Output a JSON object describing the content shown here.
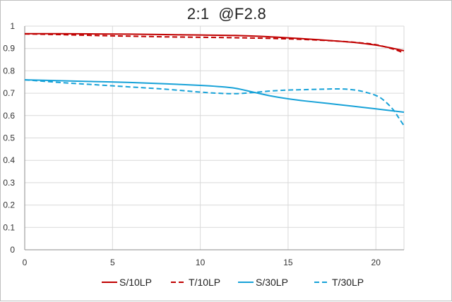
{
  "chart_data": {
    "type": "line",
    "title": "2:1  @F2.8",
    "xlabel": "",
    "ylabel": "",
    "xlim": [
      0,
      21.6
    ],
    "ylim": [
      0,
      1
    ],
    "xticks": [
      0,
      5,
      10,
      15,
      20
    ],
    "yticks": [
      0,
      0.1,
      0.2,
      0.3,
      0.4,
      0.5,
      0.6,
      0.7,
      0.8,
      0.9,
      1
    ],
    "ytick_labels": [
      "0",
      "0.1",
      "0.2",
      "0.3",
      "0.4",
      "0.5",
      "0.6",
      "0.7",
      "0.8",
      "0.9",
      "1"
    ],
    "grid": "horizontal and vertical",
    "legend_position": "bottom",
    "series": [
      {
        "name": "S/10LP",
        "color": "#c00000",
        "dash": "solid",
        "x": [
          0,
          2,
          4,
          6,
          8,
          10,
          12,
          14,
          16,
          18,
          19,
          20,
          21,
          21.6
        ],
        "y": [
          0.966,
          0.966,
          0.965,
          0.964,
          0.962,
          0.96,
          0.958,
          0.952,
          0.943,
          0.932,
          0.925,
          0.915,
          0.9,
          0.89
        ]
      },
      {
        "name": "T/10LP",
        "color": "#c00000",
        "dash": "dashed",
        "x": [
          0,
          2,
          4,
          6,
          8,
          10,
          12,
          14,
          16,
          18,
          19,
          20,
          21,
          21.6
        ],
        "y": [
          0.965,
          0.962,
          0.958,
          0.955,
          0.952,
          0.95,
          0.948,
          0.945,
          0.94,
          0.932,
          0.926,
          0.917,
          0.897,
          0.88
        ]
      },
      {
        "name": "S/30LP",
        "color": "#17a2d8",
        "dash": "solid",
        "x": [
          0,
          2,
          4,
          6,
          8,
          10,
          11,
          12,
          13,
          14,
          15,
          16,
          18,
          20,
          21.6
        ],
        "y": [
          0.76,
          0.756,
          0.752,
          0.748,
          0.742,
          0.735,
          0.73,
          0.722,
          0.705,
          0.688,
          0.675,
          0.665,
          0.648,
          0.63,
          0.615
        ]
      },
      {
        "name": "T/30LP",
        "color": "#17a2d8",
        "dash": "dashed",
        "x": [
          0,
          2,
          4,
          6,
          8,
          10,
          11,
          12,
          13,
          14,
          15,
          16,
          17,
          18,
          19,
          20,
          20.5,
          21,
          21.3,
          21.6
        ],
        "y": [
          0.76,
          0.748,
          0.738,
          0.728,
          0.718,
          0.705,
          0.7,
          0.698,
          0.703,
          0.71,
          0.714,
          0.716,
          0.718,
          0.719,
          0.712,
          0.69,
          0.665,
          0.625,
          0.59,
          0.555
        ]
      }
    ]
  }
}
